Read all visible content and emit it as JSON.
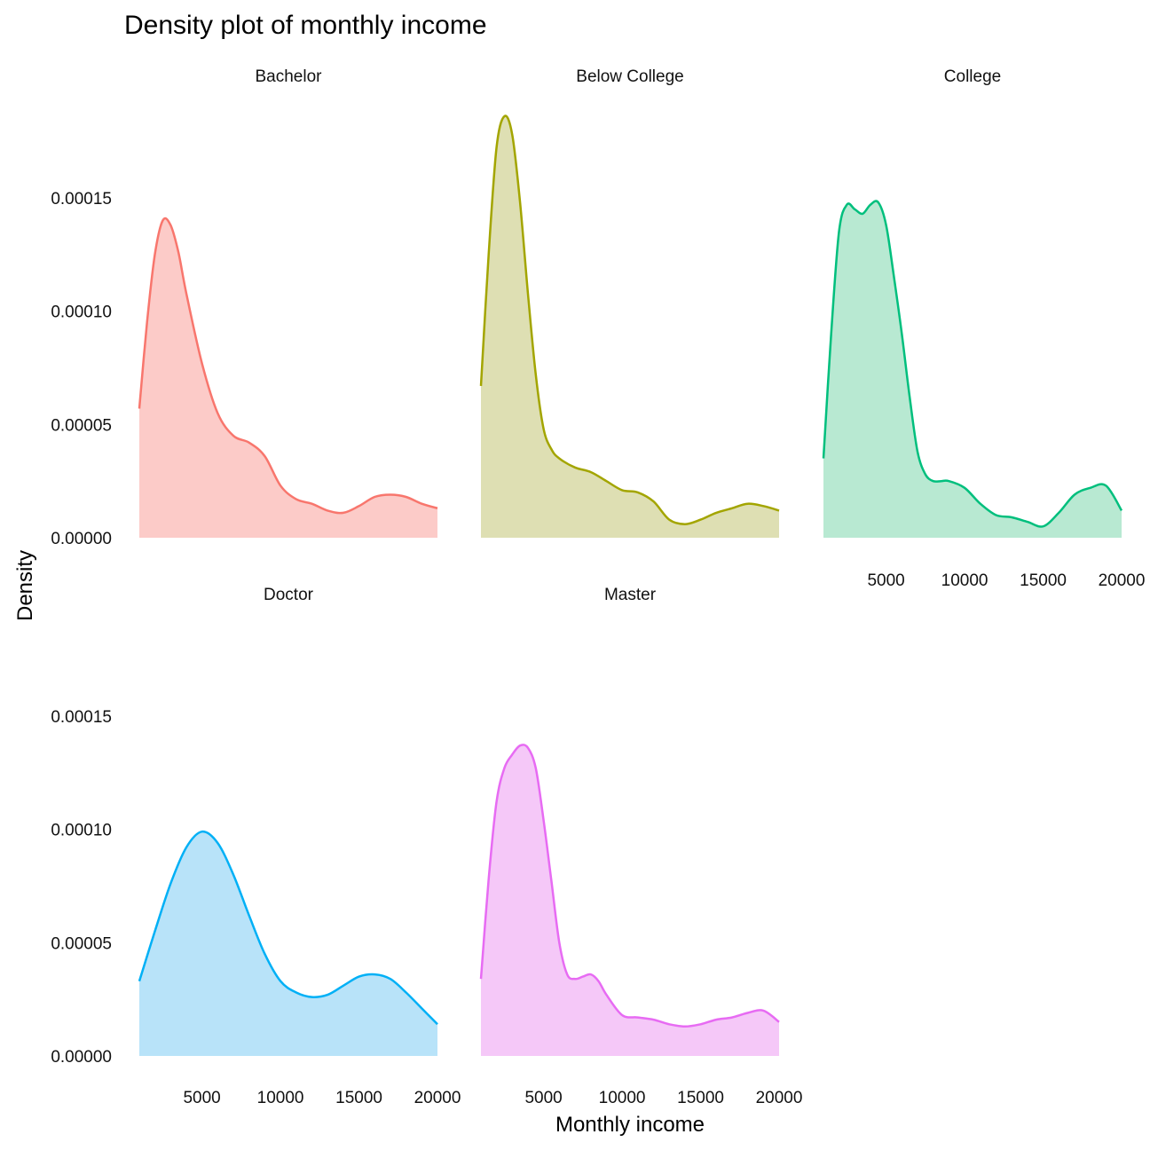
{
  "chart_data": {
    "type": "area",
    "title": "Density plot of monthly income",
    "xlabel": "Monthly income",
    "ylabel": "Density",
    "xlim": [
      1009,
      19999
    ],
    "ylim": [
      0,
      0.00019
    ],
    "x_ticks": [
      5000,
      10000,
      15000,
      20000
    ],
    "x_tick_labels": [
      "5000",
      "10000",
      "15000",
      "20000"
    ],
    "y_ticks": [
      0,
      5e-05,
      0.0001,
      0.00015
    ],
    "y_tick_labels": [
      "0.00000",
      "0.00005",
      "0.00010",
      "0.00015"
    ],
    "grid": false,
    "legend": "none",
    "facets": [
      "Bachelor",
      "Below College",
      "College",
      "Doctor",
      "Master"
    ],
    "series": [
      {
        "name": "Bachelor",
        "color": "#F8766D",
        "fill": "#FCCBC8",
        "x": [
          1009,
          1500,
          2000,
          2500,
          3000,
          3500,
          4000,
          5000,
          6000,
          7000,
          8000,
          9000,
          10000,
          11000,
          12000,
          13000,
          14000,
          15000,
          16000,
          17000,
          18000,
          19000,
          19999
        ],
        "y": [
          5.7e-05,
          9.5e-05,
          0.000125,
          0.00014,
          0.000138,
          0.000126,
          0.000108,
          7.7e-05,
          5.5e-05,
          4.5e-05,
          4.2e-05,
          3.6e-05,
          2.3e-05,
          1.7e-05,
          1.5e-05,
          1.2e-05,
          1.1e-05,
          1.4e-05,
          1.8e-05,
          1.9e-05,
          1.8e-05,
          1.5e-05,
          1.3e-05
        ]
      },
      {
        "name": "Below College",
        "color": "#A3A500",
        "fill": "#DEDFB3",
        "x": [
          1009,
          1500,
          2000,
          2500,
          3000,
          3500,
          4000,
          4500,
          5000,
          5500,
          6000,
          7000,
          8000,
          9000,
          10000,
          11000,
          12000,
          13000,
          14000,
          15000,
          16000,
          17000,
          18000,
          19000,
          19999
        ],
        "y": [
          6.7e-05,
          0.000125,
          0.000172,
          0.000186,
          0.000178,
          0.000148,
          0.000108,
          7.2e-05,
          4.8e-05,
          3.9e-05,
          3.5e-05,
          3.1e-05,
          2.9e-05,
          2.5e-05,
          2.1e-05,
          2e-05,
          1.6e-05,
          8e-06,
          6e-06,
          8e-06,
          1.1e-05,
          1.3e-05,
          1.5e-05,
          1.4e-05,
          1.2e-05
        ]
      },
      {
        "name": "College",
        "color": "#00BF7D",
        "fill": "#B8E9D2",
        "x": [
          1009,
          1500,
          2000,
          2500,
          3000,
          3500,
          4000,
          4500,
          5000,
          5500,
          6000,
          6500,
          7000,
          7500,
          8000,
          8500,
          9000,
          10000,
          11000,
          12000,
          13000,
          14000,
          15000,
          16000,
          17000,
          18000,
          19000,
          19999
        ],
        "y": [
          3.5e-05,
          9e-05,
          0.000135,
          0.000147,
          0.000145,
          0.000143,
          0.000147,
          0.000148,
          0.000138,
          0.000115,
          9e-05,
          6.2e-05,
          3.8e-05,
          2.8e-05,
          2.5e-05,
          2.5e-05,
          2.5e-05,
          2.2e-05,
          1.5e-05,
          1e-05,
          9e-06,
          7e-06,
          5e-06,
          1.1e-05,
          1.9e-05,
          2.2e-05,
          2.3e-05,
          1.2e-05
        ]
      },
      {
        "name": "Doctor",
        "color": "#00B0F6",
        "fill": "#B8E3F9",
        "x": [
          1009,
          2000,
          3000,
          4000,
          5000,
          6000,
          7000,
          8000,
          9000,
          10000,
          11000,
          12000,
          13000,
          14000,
          15000,
          16000,
          17000,
          18000,
          19000,
          19999
        ],
        "y": [
          3.3e-05,
          5.5e-05,
          7.6e-05,
          9.2e-05,
          9.9e-05,
          9.4e-05,
          8e-05,
          6.2e-05,
          4.5e-05,
          3.3e-05,
          2.8e-05,
          2.6e-05,
          2.7e-05,
          3.1e-05,
          3.5e-05,
          3.6e-05,
          3.4e-05,
          2.8e-05,
          2.1e-05,
          1.4e-05
        ]
      },
      {
        "name": "Master",
        "color": "#E76BF3",
        "fill": "#F5C8F8",
        "x": [
          1009,
          1500,
          2000,
          2500,
          3000,
          3500,
          4000,
          4500,
          5000,
          5500,
          6000,
          6500,
          7000,
          7500,
          8000,
          8500,
          9000,
          10000,
          11000,
          12000,
          13000,
          14000,
          15000,
          16000,
          17000,
          18000,
          19000,
          19999
        ],
        "y": [
          3.4e-05,
          7.8e-05,
          0.000112,
          0.000127,
          0.000133,
          0.000137,
          0.000136,
          0.000127,
          0.000104,
          7.7e-05,
          5e-05,
          3.6e-05,
          3.4e-05,
          3.5e-05,
          3.6e-05,
          3.3e-05,
          2.7e-05,
          1.8e-05,
          1.7e-05,
          1.6e-05,
          1.4e-05,
          1.3e-05,
          1.4e-05,
          1.6e-05,
          1.7e-05,
          1.9e-05,
          2e-05,
          1.5e-05
        ]
      }
    ]
  }
}
